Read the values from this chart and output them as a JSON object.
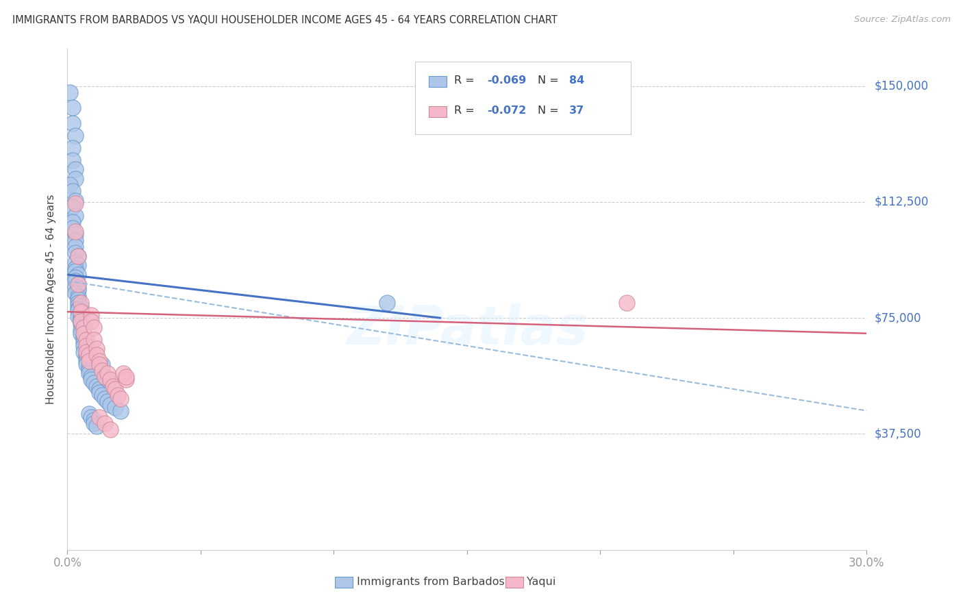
{
  "title": "IMMIGRANTS FROM BARBADOS VS YAQUI HOUSEHOLDER INCOME AGES 45 - 64 YEARS CORRELATION CHART",
  "source": "Source: ZipAtlas.com",
  "ylabel": "Householder Income Ages 45 - 64 years",
  "ytick_labels": [
    "$37,500",
    "$75,000",
    "$112,500",
    "$150,000"
  ],
  "ytick_values": [
    37500,
    75000,
    112500,
    150000
  ],
  "legend_label1": "Immigrants from Barbados",
  "legend_label2": "Yaqui",
  "legend_R1": "R = -0.069",
  "legend_N1": "N = 84",
  "legend_R2": "R = -0.072",
  "legend_N2": "N = 37",
  "color_blue": "#aec6e8",
  "color_blue_edge": "#6699cc",
  "color_blue_line": "#4472c4",
  "color_pink": "#f4b8c8",
  "color_pink_edge": "#cc8899",
  "color_pink_line": "#d4607a",
  "color_dashed": "#99bbdd",
  "color_text_blue": "#4472c4",
  "color_axis": "#4472c4",
  "xmin": 0.0,
  "xmax": 0.3,
  "ymin": 0,
  "ymax": 162000,
  "blue_scatter_x": [
    0.001,
    0.002,
    0.002,
    0.003,
    0.002,
    0.002,
    0.003,
    0.003,
    0.001,
    0.002,
    0.003,
    0.002,
    0.003,
    0.002,
    0.002,
    0.003,
    0.003,
    0.003,
    0.003,
    0.004,
    0.003,
    0.004,
    0.003,
    0.003,
    0.004,
    0.003,
    0.003,
    0.004,
    0.003,
    0.004,
    0.004,
    0.003,
    0.004,
    0.004,
    0.004,
    0.004,
    0.005,
    0.004,
    0.004,
    0.005,
    0.005,
    0.005,
    0.004,
    0.005,
    0.005,
    0.005,
    0.006,
    0.005,
    0.006,
    0.005,
    0.005,
    0.006,
    0.006,
    0.006,
    0.006,
    0.007,
    0.006,
    0.007,
    0.007,
    0.007,
    0.007,
    0.008,
    0.008,
    0.008,
    0.009,
    0.009,
    0.01,
    0.011,
    0.012,
    0.012,
    0.013,
    0.014,
    0.015,
    0.016,
    0.018,
    0.02,
    0.008,
    0.009,
    0.01,
    0.01,
    0.011,
    0.013,
    0.015,
    0.12
  ],
  "blue_scatter_y": [
    148000,
    143000,
    138000,
    134000,
    130000,
    126000,
    123000,
    120000,
    118000,
    116000,
    113000,
    111000,
    108000,
    106000,
    104000,
    102000,
    100000,
    98000,
    96000,
    95000,
    93000,
    92000,
    91000,
    90000,
    89000,
    88000,
    87000,
    86000,
    85000,
    84500,
    84000,
    83000,
    82000,
    81000,
    80000,
    79000,
    78500,
    78000,
    77500,
    77000,
    76500,
    76000,
    75500,
    75000,
    74500,
    74000,
    73500,
    73000,
    72000,
    71000,
    70000,
    69000,
    68000,
    67000,
    66000,
    65000,
    64000,
    63000,
    62000,
    61000,
    60000,
    59000,
    58000,
    57000,
    56000,
    55000,
    54000,
    53000,
    52000,
    51000,
    50000,
    49000,
    48000,
    47000,
    46000,
    45000,
    44000,
    43000,
    42000,
    41000,
    40000,
    60000,
    55000,
    80000
  ],
  "pink_scatter_x": [
    0.003,
    0.003,
    0.004,
    0.004,
    0.005,
    0.005,
    0.005,
    0.006,
    0.006,
    0.007,
    0.007,
    0.007,
    0.008,
    0.008,
    0.009,
    0.009,
    0.01,
    0.01,
    0.011,
    0.011,
    0.012,
    0.012,
    0.013,
    0.014,
    0.015,
    0.016,
    0.017,
    0.018,
    0.019,
    0.02,
    0.021,
    0.022,
    0.022,
    0.21,
    0.012,
    0.014,
    0.016
  ],
  "pink_scatter_y": [
    112000,
    103000,
    95000,
    86000,
    80000,
    77000,
    74000,
    72000,
    70000,
    68000,
    66000,
    64000,
    63000,
    61000,
    76000,
    74000,
    72000,
    68000,
    65000,
    63000,
    61000,
    60000,
    58000,
    56000,
    57000,
    55000,
    53000,
    52000,
    50000,
    49000,
    57000,
    55000,
    56000,
    80000,
    43000,
    41000,
    39000
  ],
  "blue_line_x": [
    0.0,
    0.14
  ],
  "blue_line_y": [
    89000,
    75000
  ],
  "pink_line_x": [
    0.0,
    0.3
  ],
  "pink_line_y": [
    77000,
    70000
  ],
  "dashed_line_x": [
    0.0,
    0.3
  ],
  "dashed_line_y": [
    87000,
    45000
  ]
}
